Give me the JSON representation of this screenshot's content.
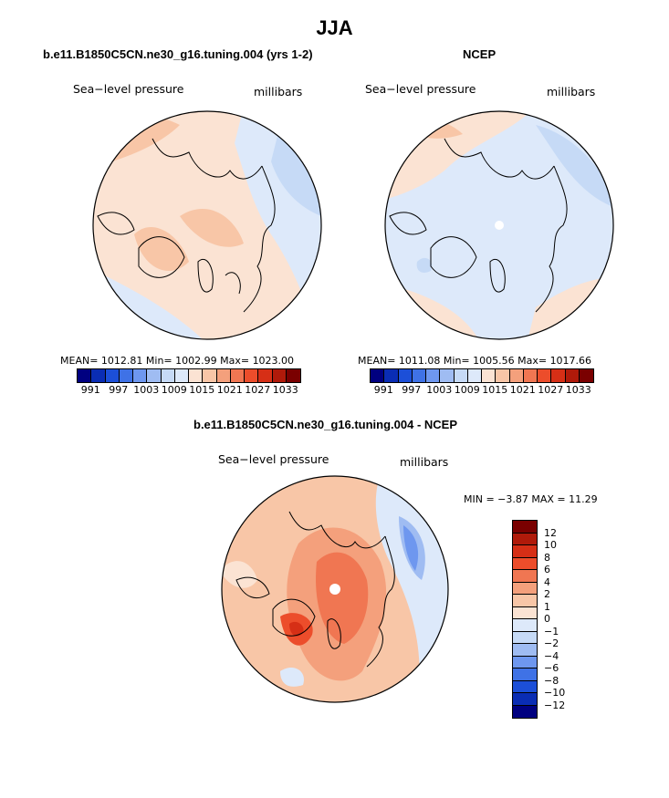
{
  "title": "JJA",
  "panels": {
    "model": {
      "title": "b.e11.B1850C5CN.ne30_g16.tuning.004 (yrs 1-2)",
      "left_label": "Sea−level pressure",
      "right_label": "millibars",
      "stats": "MEAN= 1012.81   Min= 1002.99   Max= 1023.00"
    },
    "obs": {
      "title": "NCEP",
      "left_label": "Sea−level pressure",
      "right_label": "millibars",
      "stats": "MEAN= 1011.08   Min= 1005.56   Max= 1017.66"
    },
    "diff": {
      "title": "b.e11.B1850C5CN.ne30_g16.tuning.004 - NCEP",
      "left_label": "Sea−level pressure",
      "right_label": "millibars",
      "stats": "MIN =   −3.87  MAX =   11.29"
    }
  },
  "colorbar_abs": {
    "ticks": [
      "991",
      "997",
      "1003",
      "1009",
      "1015",
      "1021",
      "1027",
      "1033"
    ],
    "colors": [
      "#000080",
      "#0a2db4",
      "#1c4fd8",
      "#3f72e6",
      "#6e97ef",
      "#9fbcf2",
      "#c6daf6",
      "#dde9fa",
      "#fbe3d3",
      "#f8c6a7",
      "#f4a07c",
      "#f07652",
      "#ec4d2b",
      "#d62f16",
      "#b01a0a",
      "#7a0000"
    ]
  },
  "colorbar_diff": {
    "ticks": [
      "12",
      "10",
      "8",
      "6",
      "4",
      "2",
      "1",
      "0",
      "−1",
      "−2",
      "−4",
      "−6",
      "−8",
      "−10",
      "−12"
    ],
    "colors": [
      "#7a0000",
      "#b01a0a",
      "#d62f16",
      "#ec4d2b",
      "#f07652",
      "#f4a07c",
      "#f8c6a7",
      "#fbe3d3",
      "#dde9fa",
      "#c6daf6",
      "#9fbcf2",
      "#6e97ef",
      "#3f72e6",
      "#1c4fd8",
      "#0a2db4",
      "#000080"
    ]
  },
  "colors": {
    "pale_warm": "#fbe3d3",
    "light_warm": "#f8c6a7",
    "mid_warm": "#f4a07c",
    "strong_warm": "#f07652",
    "deep_warm": "#ec4d2b",
    "dark_warm": "#d62f16",
    "pale_cool": "#dde9fa",
    "light_cool": "#c6daf6",
    "mid_cool": "#9fbcf2",
    "strong_cool": "#6e97ef"
  }
}
